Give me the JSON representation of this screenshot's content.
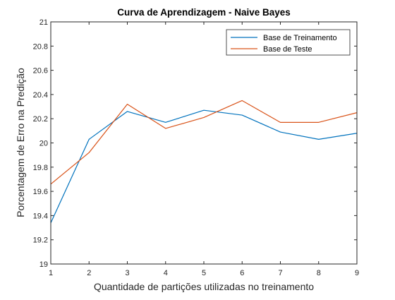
{
  "chart_data": {
    "type": "line",
    "title": "Curva de Aprendizagem - Naive Bayes",
    "xlabel": "Quantidade de partições utilizadas no treinamento",
    "ylabel": "Porcentagem de Erro na Predição",
    "x": [
      1,
      2,
      3,
      4,
      5,
      6,
      7,
      8,
      9
    ],
    "xlim": [
      1,
      9
    ],
    "ylim": [
      19,
      21
    ],
    "xticks": [
      1,
      2,
      3,
      4,
      5,
      6,
      7,
      8,
      9
    ],
    "xtick_labels": [
      "1",
      "2",
      "3",
      "4",
      "5",
      "6",
      "7",
      "8",
      "9"
    ],
    "yticks": [
      19,
      19.2,
      19.4,
      19.6,
      19.8,
      20,
      20.2,
      20.4,
      20.6,
      20.8,
      21
    ],
    "ytick_labels": [
      "19",
      "19.2",
      "19.4",
      "19.6",
      "19.8",
      "20",
      "20.2",
      "20.4",
      "20.6",
      "20.8",
      "21"
    ],
    "grid": false,
    "legend_position": "top-right",
    "series": [
      {
        "name": "Base de Treinamento",
        "color": "#0072BD",
        "values": [
          19.34,
          20.03,
          20.26,
          20.17,
          20.27,
          20.23,
          20.09,
          20.03,
          20.08
        ]
      },
      {
        "name": "Base de Teste",
        "color": "#D95319",
        "values": [
          19.66,
          19.92,
          20.32,
          20.12,
          20.21,
          20.35,
          20.17,
          20.17,
          20.25
        ]
      }
    ]
  }
}
